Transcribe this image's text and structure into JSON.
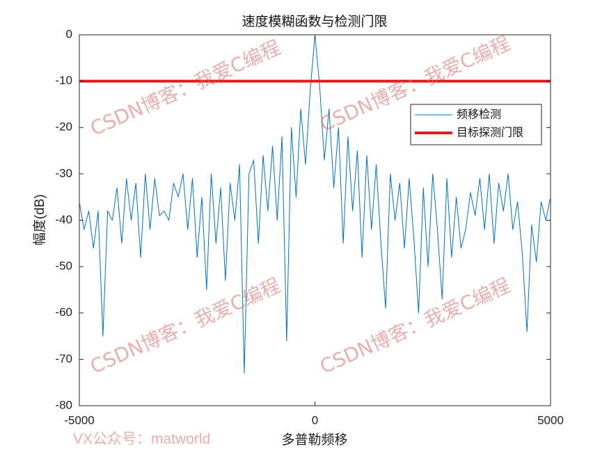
{
  "chart_data": {
    "type": "line",
    "title": "速度模糊函数与检测门限",
    "x_label": "多普勒频移",
    "y_label": "幅度(dB)",
    "watermark": "CSDN博客：我爱C编程",
    "footnote": "VX公众号：matworld",
    "xlim": [
      -5000,
      5000
    ],
    "xticks": [
      -5000,
      0,
      5000
    ],
    "ylim": [
      -80,
      0
    ],
    "yticks": [
      0,
      -10,
      -20,
      -30,
      -40,
      -50,
      -60,
      -70,
      -80
    ],
    "legend": "northeast",
    "series": [
      {
        "name": "频移检测",
        "color": "#0072bd",
        "x": [
          -5000,
          -4900,
          -4800,
          -4700,
          -4600,
          -4500,
          -4400,
          -4300,
          -4200,
          -4100,
          -4000,
          -3900,
          -3800,
          -3700,
          -3600,
          -3500,
          -3400,
          -3300,
          -3200,
          -3100,
          -3000,
          -2900,
          -2800,
          -2700,
          -2600,
          -2500,
          -2400,
          -2300,
          -2200,
          -2100,
          -2000,
          -1900,
          -1800,
          -1700,
          -1600,
          -1500,
          -1400,
          -1300,
          -1200,
          -1100,
          -1000,
          -900,
          -800,
          -700,
          -600,
          -500,
          -400,
          -300,
          -200,
          -100,
          0,
          100,
          200,
          300,
          400,
          500,
          600,
          700,
          800,
          900,
          1000,
          1100,
          1200,
          1300,
          1400,
          1500,
          1600,
          1700,
          1800,
          1900,
          2000,
          2100,
          2200,
          2300,
          2400,
          2500,
          2600,
          2700,
          2800,
          2900,
          3000,
          3100,
          3200,
          3300,
          3400,
          3500,
          3600,
          3700,
          3800,
          3900,
          4000,
          4100,
          4200,
          4300,
          4400,
          4500,
          4600,
          4700,
          4800,
          4900,
          5000
        ],
        "values": [
          -36,
          -42,
          -38,
          -46,
          -38,
          -65,
          -38,
          -40,
          -33,
          -45,
          -31,
          -40,
          -32,
          -48,
          -30,
          -42,
          -31,
          -39,
          -38,
          -40,
          -32,
          -35,
          -30,
          -42,
          -31,
          -48,
          -35,
          -55,
          -30,
          -45,
          -33,
          -53,
          -32,
          -40,
          -28,
          -73,
          -30,
          -27,
          -45,
          -26,
          -38,
          -24,
          -40,
          -22,
          -66,
          -20,
          -35,
          -16,
          -28,
          -12,
          0,
          -11,
          -27,
          -16,
          -33,
          -20,
          -45,
          -22,
          -38,
          -25,
          -48,
          -26,
          -42,
          -28,
          -45,
          -59,
          -30,
          -40,
          -32,
          -46,
          -31,
          -44,
          -60,
          -33,
          -50,
          -30,
          -42,
          -57,
          -31,
          -48,
          -35,
          -46,
          -42,
          -34,
          -39,
          -31,
          -42,
          -30,
          -45,
          -32,
          -38,
          -30,
          -42,
          -36,
          -47,
          -64,
          -41,
          -49,
          -36,
          -40,
          -35
        ]
      },
      {
        "name": "目标探测门限",
        "color": "#e41a1c",
        "x": [
          -5000,
          5000
        ],
        "values": [
          -10,
          -10
        ]
      }
    ]
  }
}
